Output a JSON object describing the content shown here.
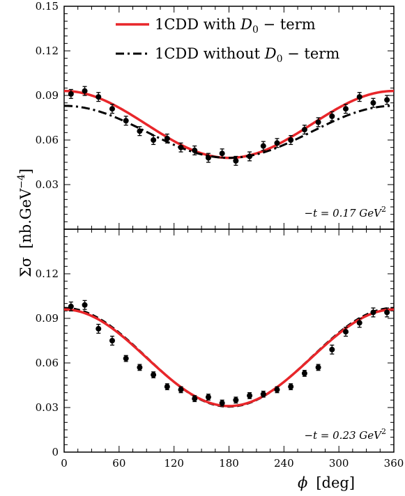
{
  "chart_data": {
    "type": "scatter",
    "xlabel_symbol": "ϕ",
    "xlabel_unit": "[deg]",
    "ylabel_symbol": "Σσ",
    "ylabel_unit": "[nb.GeV",
    "ylabel_exp": "−4",
    "ylabel_close": "]",
    "xlim": [
      0,
      360
    ],
    "xticks": [
      "0",
      "60",
      "120",
      "180",
      "240",
      "300",
      "360"
    ],
    "legend": {
      "position": "top-right",
      "items": [
        {
          "label": "1CDD with ",
          "var": "D",
          "sub": "0",
          "suffix": " − term",
          "color": "#e8262a",
          "style": "solid"
        },
        {
          "label": "1CDD without ",
          "var": "D",
          "sub": "0",
          "suffix": " − term",
          "color": "#000000",
          "style": "dashdot"
        }
      ]
    },
    "panels": [
      {
        "annotation_prefix": "−t = 0.17  GeV",
        "annotation_exp": "2",
        "ylim": [
          0,
          0.15
        ],
        "yticks": [
          {
            "v": 0.03,
            "label": "0.03"
          },
          {
            "v": 0.06,
            "label": "0.06"
          },
          {
            "v": 0.09,
            "label": "0.09"
          },
          {
            "v": 0.12,
            "label": "0.12"
          },
          {
            "v": 0.15,
            "label": "0.15"
          }
        ],
        "points": [
          {
            "x": 7.5,
            "y": 0.091,
            "err": 0.003
          },
          {
            "x": 22.5,
            "y": 0.093,
            "err": 0.003
          },
          {
            "x": 37.5,
            "y": 0.089,
            "err": 0.003
          },
          {
            "x": 52.5,
            "y": 0.081,
            "err": 0.003
          },
          {
            "x": 67.5,
            "y": 0.073,
            "err": 0.003
          },
          {
            "x": 82.5,
            "y": 0.066,
            "err": 0.003
          },
          {
            "x": 97.5,
            "y": 0.06,
            "err": 0.003
          },
          {
            "x": 112.5,
            "y": 0.061,
            "err": 0.003
          },
          {
            "x": 127.5,
            "y": 0.055,
            "err": 0.003
          },
          {
            "x": 142.5,
            "y": 0.053,
            "err": 0.003
          },
          {
            "x": 157.5,
            "y": 0.048,
            "err": 0.003
          },
          {
            "x": 172.5,
            "y": 0.051,
            "err": 0.003
          },
          {
            "x": 187.5,
            "y": 0.046,
            "err": 0.003
          },
          {
            "x": 202.5,
            "y": 0.049,
            "err": 0.003
          },
          {
            "x": 217.5,
            "y": 0.056,
            "err": 0.003
          },
          {
            "x": 232.5,
            "y": 0.058,
            "err": 0.003
          },
          {
            "x": 247.5,
            "y": 0.06,
            "err": 0.003
          },
          {
            "x": 262.5,
            "y": 0.067,
            "err": 0.003
          },
          {
            "x": 277.5,
            "y": 0.072,
            "err": 0.003
          },
          {
            "x": 292.5,
            "y": 0.076,
            "err": 0.003
          },
          {
            "x": 307.5,
            "y": 0.081,
            "err": 0.003
          },
          {
            "x": 322.5,
            "y": 0.089,
            "err": 0.003
          },
          {
            "x": 337.5,
            "y": 0.085,
            "err": 0.003
          },
          {
            "x": 352.5,
            "y": 0.087,
            "err": 0.003
          }
        ],
        "curves": [
          {
            "color": "#e8262a",
            "style": "solid",
            "base": 0.0705,
            "amp": 0.0225
          },
          {
            "color": "#000000",
            "style": "dashdot",
            "base": 0.0655,
            "amp": 0.0175
          }
        ]
      },
      {
        "annotation_prefix": "−t = 0.23  GeV",
        "annotation_exp": "2",
        "ylim": [
          0,
          0.15
        ],
        "yticks": [
          {
            "v": 0,
            "label": "0"
          },
          {
            "v": 0.03,
            "label": "0.03"
          },
          {
            "v": 0.06,
            "label": "0.06"
          },
          {
            "v": 0.09,
            "label": "0.09"
          },
          {
            "v": 0.12,
            "label": "0.12"
          }
        ],
        "points": [
          {
            "x": 7.5,
            "y": 0.098,
            "err": 0.003
          },
          {
            "x": 22.5,
            "y": 0.099,
            "err": 0.003
          },
          {
            "x": 37.5,
            "y": 0.083,
            "err": 0.003
          },
          {
            "x": 52.5,
            "y": 0.075,
            "err": 0.003
          },
          {
            "x": 67.5,
            "y": 0.063,
            "err": 0.002
          },
          {
            "x": 82.5,
            "y": 0.057,
            "err": 0.002
          },
          {
            "x": 97.5,
            "y": 0.052,
            "err": 0.002
          },
          {
            "x": 112.5,
            "y": 0.044,
            "err": 0.002
          },
          {
            "x": 127.5,
            "y": 0.042,
            "err": 0.002
          },
          {
            "x": 142.5,
            "y": 0.036,
            "err": 0.002
          },
          {
            "x": 157.5,
            "y": 0.037,
            "err": 0.002
          },
          {
            "x": 172.5,
            "y": 0.033,
            "err": 0.002
          },
          {
            "x": 187.5,
            "y": 0.035,
            "err": 0.002
          },
          {
            "x": 202.5,
            "y": 0.038,
            "err": 0.002
          },
          {
            "x": 217.5,
            "y": 0.039,
            "err": 0.002
          },
          {
            "x": 232.5,
            "y": 0.042,
            "err": 0.002
          },
          {
            "x": 247.5,
            "y": 0.044,
            "err": 0.002
          },
          {
            "x": 262.5,
            "y": 0.053,
            "err": 0.002
          },
          {
            "x": 277.5,
            "y": 0.057,
            "err": 0.002
          },
          {
            "x": 292.5,
            "y": 0.069,
            "err": 0.003
          },
          {
            "x": 307.5,
            "y": 0.081,
            "err": 0.003
          },
          {
            "x": 322.5,
            "y": 0.087,
            "err": 0.003
          },
          {
            "x": 337.5,
            "y": 0.094,
            "err": 0.003
          },
          {
            "x": 352.5,
            "y": 0.094,
            "err": 0.003
          }
        ],
        "curves": [
          {
            "color": "#000000",
            "style": "dashed",
            "base": 0.0638,
            "amp": 0.0332
          },
          {
            "color": "#e8262a",
            "style": "solid",
            "base": 0.0635,
            "amp": 0.0325
          }
        ]
      }
    ]
  }
}
